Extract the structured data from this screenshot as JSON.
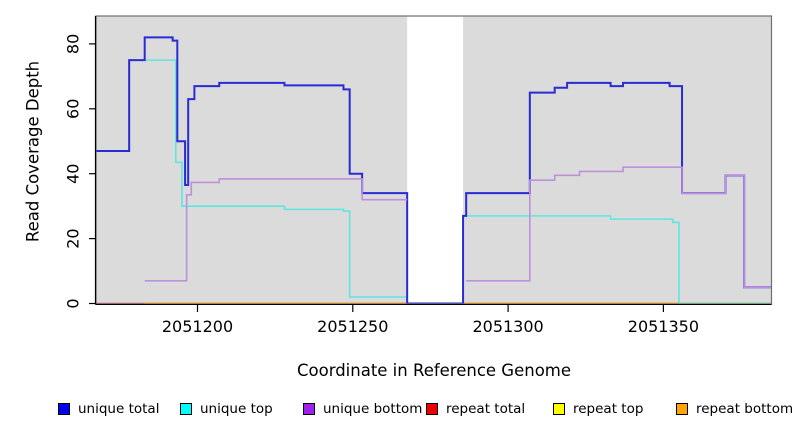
{
  "chart_data": {
    "type": "line",
    "subtype": "step-coverage",
    "title": "",
    "xlabel": "Coordinate in Reference Genome",
    "ylabel": "Read Coverage Depth",
    "xlim": [
      2051167,
      2051385
    ],
    "ylim": [
      0,
      88
    ],
    "x_ticks": [
      2051200,
      2051250,
      2051300,
      2051350
    ],
    "y_ticks": [
      0,
      20,
      40,
      60,
      80
    ],
    "grid": false,
    "plot_bg_color": "#DBDBDB",
    "no_data_color": "#FFFFFF",
    "box_color": "#707070",
    "axis_color": "#000000",
    "no_data_regions": [
      [
        2051267.5,
        2051285.5
      ]
    ],
    "legend_position": "bottom",
    "series": [
      {
        "name": "repeat total",
        "legend_color": "#EE0000",
        "line_color": "#D9536E",
        "line_width": 1.6,
        "paths": [
          {
            "steps": [
              [
                2051167,
                0
              ]
            ],
            "end": 2051183
          }
        ]
      },
      {
        "name": "repeat top",
        "legend_color": "#FFFF00",
        "line_color": "#FFFF00",
        "line_width": 1.6,
        "paths": [
          {
            "steps": [
              [
                2051183,
                0
              ]
            ],
            "end": 2051385
          }
        ]
      },
      {
        "name": "repeat bottom",
        "legend_color": "#FFA500",
        "line_color": "#FF9E1C",
        "line_width": 2,
        "paths": [
          {
            "steps": [
              [
                2051183,
                0
              ]
            ],
            "end": 2051385
          }
        ]
      },
      {
        "name": "unique top",
        "legend_color": "#00FFFF",
        "line_color": "#5FE6E0",
        "line_width": 1.6,
        "paths": [
          {
            "steps": [
              [
                2051167,
                47
              ],
              [
                2051178,
                75
              ],
              [
                2051193,
                43.5
              ],
              [
                2051195,
                30
              ],
              [
                2051228,
                29
              ],
              [
                2051247,
                28.5
              ],
              [
                2051249,
                2
              ]
            ],
            "end": 2051267.5
          },
          {
            "steps": [
              [
                2051285.5,
                27
              ],
              [
                2051333,
                26
              ],
              [
                2051353,
                25
              ],
              [
                2051355,
                0
              ]
            ],
            "end": 2051385
          }
        ]
      },
      {
        "name": "unique total",
        "legend_color": "#0000EE",
        "line_color": "#2B2BD5",
        "line_width": 2,
        "paths": [
          {
            "steps": [
              [
                2051167,
                47
              ],
              [
                2051178,
                75
              ],
              [
                2051183,
                82
              ],
              [
                2051192,
                81
              ],
              [
                2051193.5,
                50
              ],
              [
                2051196,
                36.5
              ],
              [
                2051197,
                63
              ],
              [
                2051199,
                67
              ],
              [
                2051207,
                68
              ],
              [
                2051228,
                67.2
              ],
              [
                2051247,
                66
              ],
              [
                2051249,
                40
              ],
              [
                2051253,
                34
              ],
              [
                2051267.5,
                0
              ],
              [
                2051285.5,
                27
              ],
              [
                2051286.5,
                34
              ],
              [
                2051307,
                65
              ],
              [
                2051315,
                66.5
              ],
              [
                2051319,
                68
              ],
              [
                2051333,
                67
              ],
              [
                2051337,
                68
              ],
              [
                2051352,
                67
              ],
              [
                2051356,
                34
              ],
              [
                2051370,
                39.5
              ],
              [
                2051376,
                5
              ]
            ],
            "end": 2051385
          }
        ]
      },
      {
        "name": "unique bottom",
        "legend_color": "#A020F0",
        "line_color": "#BD90DC",
        "line_width": 1.6,
        "paths": [
          {
            "steps": [
              [
                2051183,
                7
              ],
              [
                2051196.5,
                33.5
              ],
              [
                2051198,
                37.3
              ],
              [
                2051207,
                38.4
              ],
              [
                2051253,
                32
              ]
            ],
            "end": 2051267.5
          },
          {
            "steps": [
              [
                2051286.5,
                7
              ],
              [
                2051307,
                38
              ],
              [
                2051315,
                39.5
              ],
              [
                2051323,
                40.7
              ],
              [
                2051337,
                42
              ],
              [
                2051356,
                34
              ],
              [
                2051370,
                39.5
              ],
              [
                2051376,
                5
              ]
            ],
            "end": 2051385
          }
        ]
      }
    ],
    "legend": [
      {
        "label": "unique total",
        "color": "#0000EE"
      },
      {
        "label": "unique top",
        "color": "#00FFFF"
      },
      {
        "label": "unique bottom",
        "color": "#A020F0"
      },
      {
        "label": "repeat total",
        "color": "#EE0000"
      },
      {
        "label": "repeat top",
        "color": "#FFFF00"
      },
      {
        "label": "repeat bottom",
        "color": "#FFA500"
      }
    ]
  }
}
